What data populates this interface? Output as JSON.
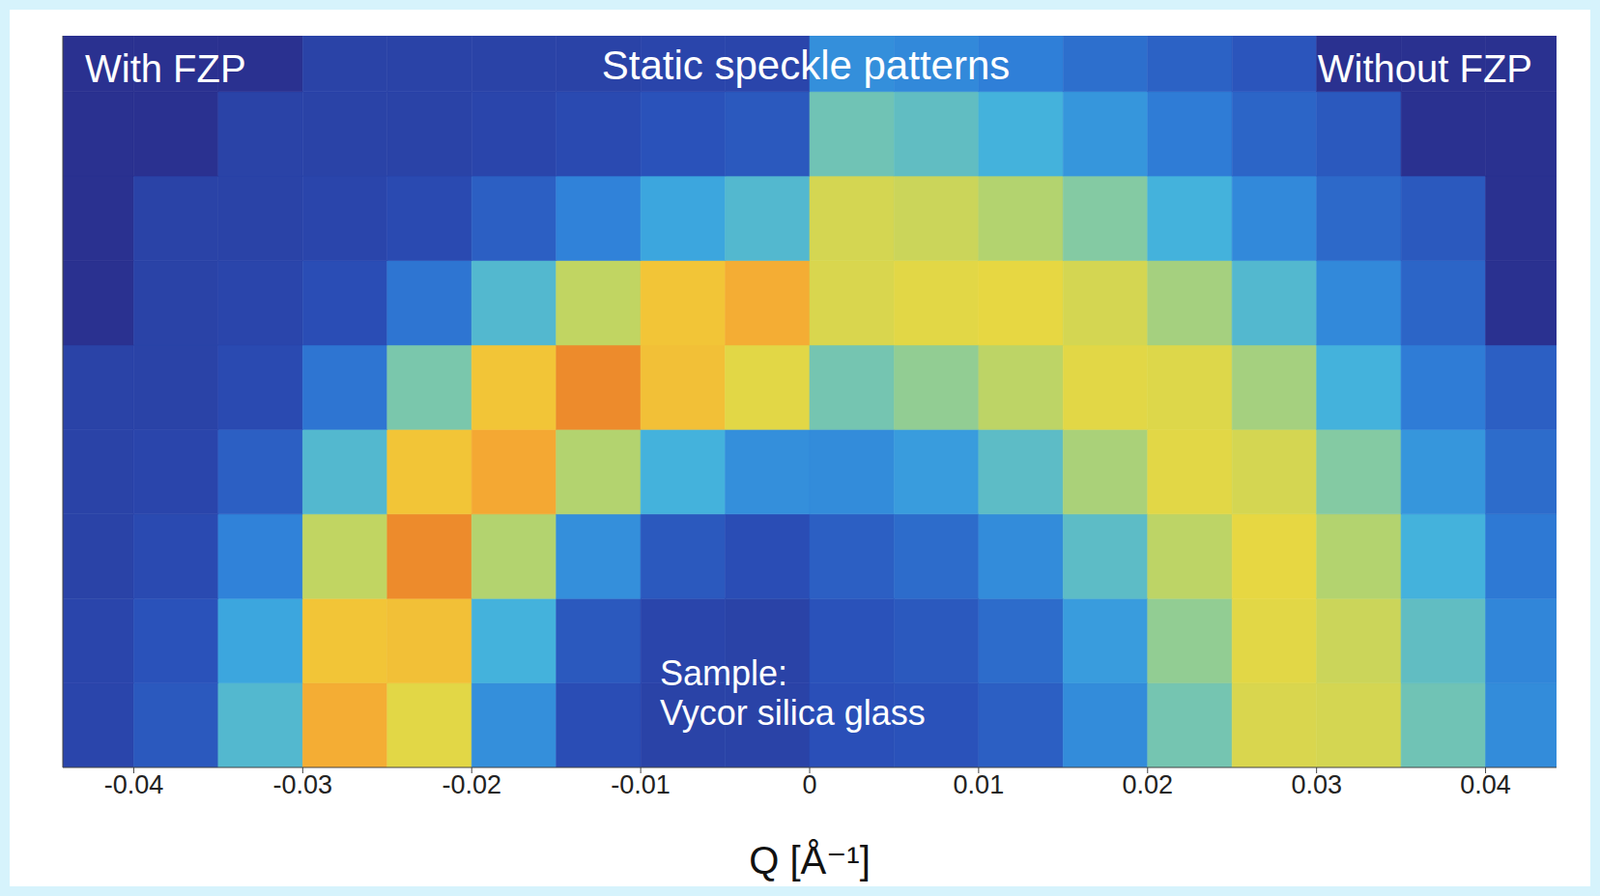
{
  "chart_data": {
    "type": "heatmap",
    "title": "Static speckle patterns",
    "panel_labels": [
      "With FZP",
      "Without FZP"
    ],
    "annotation": [
      "Sample:",
      "Vycor silica glass"
    ],
    "x_label": "Q [Å⁻¹]",
    "xlim": [
      -0.0442,
      0.0442
    ],
    "xticks": [
      -0.04,
      -0.03,
      -0.02,
      -0.01,
      0,
      0.01,
      0.02,
      0.03,
      0.04
    ],
    "ylim": [
      0,
      0.0433
    ],
    "tick_labels": "x",
    "x_edges": [
      -0.0442,
      -0.04,
      -0.035,
      -0.03,
      -0.025,
      -0.02,
      -0.015,
      -0.01,
      -0.005,
      0,
      0.005,
      0.01,
      0.015,
      0.02,
      0.025,
      0.03,
      0.035,
      0.04,
      0.0442
    ],
    "y_edges": [
      0,
      0.005,
      0.01,
      0.015,
      0.02,
      0.025,
      0.03,
      0.035,
      0.04,
      0.0433
    ],
    "value_range": [
      0,
      100
    ],
    "cells": [
      [
        11,
        18,
        49,
        91,
        79,
        35,
        14,
        10,
        10,
        15,
        16,
        20,
        34,
        56,
        77,
        76,
        55,
        34
      ],
      [
        11,
        16,
        42,
        86,
        87,
        46,
        18,
        11,
        10,
        16,
        18,
        24,
        39,
        62,
        79,
        74,
        52,
        32
      ],
      [
        10,
        13,
        31,
        72,
        95,
        69,
        35,
        18,
        14,
        20,
        24,
        34,
        51,
        71,
        80,
        69,
        46,
        28
      ],
      [
        10,
        11,
        20,
        49,
        86,
        92,
        69,
        46,
        35,
        34,
        39,
        51,
        67,
        79,
        76,
        59,
        37,
        24
      ],
      [
        10,
        10,
        13,
        27,
        57,
        86,
        95,
        87,
        79,
        56,
        62,
        71,
        79,
        78,
        66,
        46,
        29,
        20
      ],
      [
        3,
        10,
        11,
        14,
        27,
        49,
        72,
        86,
        91,
        77,
        79,
        80,
        76,
        66,
        49,
        33,
        22,
        3
      ],
      [
        3,
        10,
        10,
        11,
        13,
        20,
        31,
        42,
        49,
        76,
        74,
        69,
        59,
        46,
        33,
        23,
        18,
        3
      ],
      [
        3,
        3,
        10,
        10,
        10,
        11,
        13,
        16,
        18,
        55,
        52,
        46,
        37,
        29,
        22,
        18,
        3,
        3
      ],
      [
        3,
        3,
        3,
        10,
        10,
        10,
        10,
        11,
        11,
        35,
        33,
        30,
        25,
        21,
        17,
        3,
        3,
        3
      ]
    ]
  }
}
